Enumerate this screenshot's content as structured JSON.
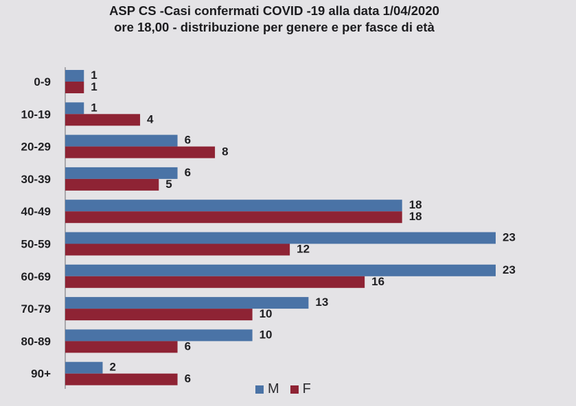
{
  "title_line1": "ASP CS -Casi confermati COVID -19 alla data 1/04/2020",
  "title_line2": "ore 18,00 - distribuzione per genere e per fasce di età",
  "colors": {
    "M": "#4a73a6",
    "F": "#8e2334"
  },
  "legend": {
    "M": "M",
    "F": "F"
  },
  "chart_data": {
    "type": "bar",
    "orientation": "horizontal",
    "title": "ASP CS -Casi confermati COVID -19 alla data 1/04/2020 ore 18,00 - distribuzione per genere e per fasce di età",
    "categories": [
      "0-9",
      "10-19",
      "20-29",
      "30-39",
      "40-49",
      "50-59",
      "60-69",
      "70-79",
      "80-89",
      "90+"
    ],
    "series": [
      {
        "name": "M",
        "values": [
          1,
          1,
          6,
          6,
          18,
          23,
          23,
          13,
          10,
          2
        ]
      },
      {
        "name": "F",
        "values": [
          1,
          4,
          8,
          5,
          18,
          12,
          16,
          10,
          6,
          6
        ]
      }
    ],
    "xlim": [
      0,
      23
    ],
    "grid": false,
    "legend_position": "bottom"
  }
}
